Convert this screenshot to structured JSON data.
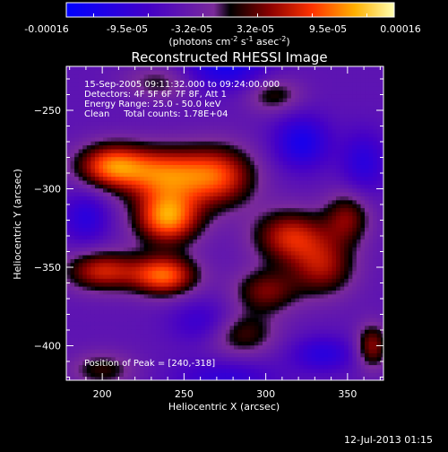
{
  "chart_data": {
    "type": "heatmap",
    "title": "Reconstructed RHESSI Image",
    "xlabel": "Heliocentric X (arcsec)",
    "ylabel": "Heliocentric Y (arcsec)",
    "xlim": [
      178,
      372
    ],
    "ylim": [
      -422,
      -222
    ],
    "xticks": [
      200,
      250,
      300,
      350
    ],
    "yticks": [
      -250,
      -300,
      -350,
      -400
    ],
    "colorbar": {
      "ticks": [
        "-0.00016",
        "-9.5e-05",
        "-3.2e-05",
        "3.2e-05",
        "9.5e-05",
        "0.00016"
      ],
      "unit_label": "(photons cm^-2 s^-1 asec^-2)",
      "range": [
        -0.00016,
        0.00016
      ]
    },
    "annotations": {
      "time_range": "15-Sep-2005 09:11:32.000 to 09:24:00.000",
      "detectors": "Detectors: 4F 5F 6F 7F 8F, Att 1",
      "energy": "Energy Range: 25.0 - 50.0 keV",
      "clean": "Clean     Total counts: 1.78E+04",
      "peak": "Position of Peak = [240,-318]"
    },
    "peak": [
      240,
      -318
    ],
    "sources": [
      {
        "x": 205,
        "y": -285,
        "amp": 0.00013,
        "sx": 15,
        "sy": 10
      },
      {
        "x": 238,
        "y": -290,
        "amp": 0.00013,
        "sx": 20,
        "sy": 12
      },
      {
        "x": 240,
        "y": -318,
        "amp": 0.00016,
        "sx": 14,
        "sy": 12
      },
      {
        "x": 272,
        "y": -292,
        "amp": 0.00011,
        "sx": 16,
        "sy": 14
      },
      {
        "x": 200,
        "y": -352,
        "amp": 0.00011,
        "sx": 16,
        "sy": 9
      },
      {
        "x": 238,
        "y": -355,
        "amp": 0.00014,
        "sx": 14,
        "sy": 9
      },
      {
        "x": 315,
        "y": -330,
        "amp": 0.00011,
        "sx": 16,
        "sy": 12
      },
      {
        "x": 335,
        "y": -350,
        "amp": 9e-05,
        "sx": 14,
        "sy": 13
      },
      {
        "x": 300,
        "y": -365,
        "amp": 8e-05,
        "sx": 14,
        "sy": 10
      },
      {
        "x": 350,
        "y": -318,
        "amp": 8e-05,
        "sx": 10,
        "sy": 12
      },
      {
        "x": 285,
        "y": -392,
        "amp": 7e-05,
        "sx": 15,
        "sy": 10
      },
      {
        "x": 365,
        "y": -400,
        "amp": 9e-05,
        "sx": 7,
        "sy": 10
      },
      {
        "x": 200,
        "y": -415,
        "amp": 6e-05,
        "sx": 14,
        "sy": 8
      },
      {
        "x": 235,
        "y": -232,
        "amp": 5e-05,
        "sx": 15,
        "sy": 8
      },
      {
        "x": 305,
        "y": -240,
        "amp": 6e-05,
        "sx": 12,
        "sy": 8
      },
      {
        "x": 275,
        "y": -222,
        "amp": -8e-05,
        "sx": 18,
        "sy": 10
      },
      {
        "x": 322,
        "y": -270,
        "amp": -8e-05,
        "sx": 12,
        "sy": 12
      },
      {
        "x": 360,
        "y": -283,
        "amp": -6e-05,
        "sx": 10,
        "sy": 14
      },
      {
        "x": 262,
        "y": -385,
        "amp": -5e-05,
        "sx": 14,
        "sy": 10
      },
      {
        "x": 335,
        "y": -405,
        "amp": -6e-05,
        "sx": 14,
        "sy": 8
      },
      {
        "x": 190,
        "y": -318,
        "amp": -6e-05,
        "sx": 10,
        "sy": 12
      },
      {
        "x": 275,
        "y": -420,
        "amp": -5e-05,
        "sx": 22,
        "sy": 8
      }
    ],
    "background": -5e-05
  },
  "footer_date": "12-Jul-2013 01:15"
}
